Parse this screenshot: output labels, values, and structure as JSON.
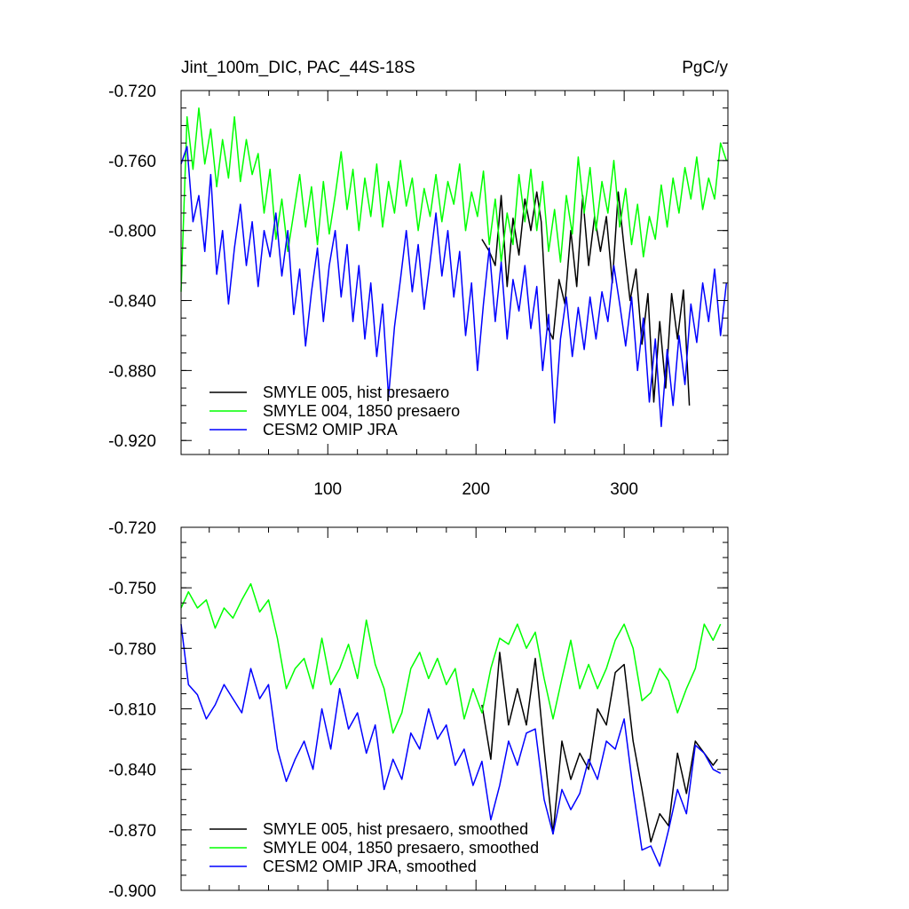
{
  "chart_data": [
    {
      "type": "line",
      "title": "Jint_100m_DIC, PAC_44S-18S",
      "units": "PgC/y",
      "xlabel": "",
      "ylabel": "",
      "xlim": [
        1,
        370
      ],
      "ylim": [
        -0.928,
        -0.72
      ],
      "yticks": [
        "-0.720",
        "-0.760",
        "-0.800",
        "-0.840",
        "-0.880",
        "-0.920"
      ],
      "ytick_values": [
        -0.72,
        -0.76,
        -0.8,
        -0.84,
        -0.88,
        -0.92
      ],
      "xticks": [
        "100",
        "200",
        "300"
      ],
      "xtick_values": [
        100,
        200,
        300
      ],
      "legend": [
        "SMYLE 005, hist presaero",
        "SMYLE 004, 1850 presaero",
        "CESM2 OMIP JRA"
      ],
      "series": [
        {
          "name": "SMYLE 005, hist presaero",
          "color": "#000000",
          "x": [
            204,
            209,
            213,
            217,
            221,
            225,
            229,
            233,
            237,
            241,
            244,
            248,
            252,
            256,
            260,
            264,
            268,
            272,
            276,
            280,
            284,
            288,
            292,
            296,
            300,
            304,
            308,
            312,
            316,
            320,
            324,
            328,
            332,
            336,
            340,
            344
          ],
          "values": [
            -0.805,
            -0.812,
            -0.82,
            -0.78,
            -0.832,
            -0.793,
            -0.814,
            -0.782,
            -0.8,
            -0.778,
            -0.795,
            -0.855,
            -0.862,
            -0.828,
            -0.842,
            -0.8,
            -0.832,
            -0.78,
            -0.82,
            -0.792,
            -0.812,
            -0.792,
            -0.83,
            -0.778,
            -0.81,
            -0.84,
            -0.822,
            -0.865,
            -0.836,
            -0.898,
            -0.852,
            -0.89,
            -0.836,
            -0.862,
            -0.834,
            -0.9
          ]
        },
        {
          "name": "SMYLE 004, 1850 presaero",
          "color": "#00ff00",
          "x": [
            1,
            5,
            9,
            13,
            17,
            21,
            25,
            29,
            33,
            37,
            41,
            45,
            49,
            53,
            57,
            61,
            65,
            69,
            73,
            77,
            81,
            85,
            89,
            93,
            97,
            101,
            105,
            109,
            113,
            117,
            121,
            125,
            129,
            133,
            137,
            141,
            145,
            149,
            153,
            157,
            161,
            165,
            169,
            173,
            177,
            181,
            185,
            189,
            193,
            197,
            201,
            205,
            209,
            213,
            217,
            221,
            225,
            229,
            233,
            237,
            241,
            245,
            249,
            253,
            257,
            261,
            265,
            269,
            273,
            277,
            281,
            285,
            289,
            293,
            297,
            301,
            305,
            309,
            313,
            317,
            321,
            325,
            329,
            333,
            337,
            341,
            345,
            349,
            353,
            357,
            361,
            365,
            369
          ],
          "values": [
            -0.835,
            -0.735,
            -0.765,
            -0.73,
            -0.762,
            -0.742,
            -0.775,
            -0.748,
            -0.77,
            -0.735,
            -0.772,
            -0.748,
            -0.768,
            -0.756,
            -0.79,
            -0.765,
            -0.805,
            -0.782,
            -0.812,
            -0.79,
            -0.768,
            -0.798,
            -0.775,
            -0.808,
            -0.772,
            -0.802,
            -0.78,
            -0.755,
            -0.788,
            -0.765,
            -0.8,
            -0.77,
            -0.792,
            -0.762,
            -0.798,
            -0.772,
            -0.79,
            -0.76,
            -0.786,
            -0.77,
            -0.8,
            -0.776,
            -0.792,
            -0.768,
            -0.795,
            -0.772,
            -0.785,
            -0.762,
            -0.8,
            -0.778,
            -0.792,
            -0.766,
            -0.808,
            -0.782,
            -0.818,
            -0.79,
            -0.808,
            -0.768,
            -0.795,
            -0.765,
            -0.8,
            -0.772,
            -0.812,
            -0.788,
            -0.818,
            -0.78,
            -0.802,
            -0.758,
            -0.79,
            -0.764,
            -0.8,
            -0.772,
            -0.79,
            -0.76,
            -0.798,
            -0.776,
            -0.808,
            -0.785,
            -0.815,
            -0.792,
            -0.805,
            -0.774,
            -0.798,
            -0.77,
            -0.79,
            -0.764,
            -0.782,
            -0.758,
            -0.788,
            -0.77,
            -0.782,
            -0.75,
            -0.76
          ]
        },
        {
          "name": "CESM2 OMIP JRA",
          "color": "#0000ff",
          "x": [
            1,
            5,
            9,
            13,
            17,
            21,
            25,
            29,
            33,
            37,
            41,
            45,
            49,
            53,
            57,
            61,
            65,
            69,
            73,
            77,
            81,
            85,
            89,
            93,
            97,
            101,
            105,
            109,
            113,
            117,
            121,
            125,
            129,
            133,
            137,
            141,
            145,
            149,
            153,
            157,
            161,
            165,
            169,
            173,
            177,
            181,
            185,
            189,
            193,
            197,
            201,
            205,
            209,
            213,
            217,
            221,
            225,
            229,
            233,
            237,
            241,
            245,
            249,
            253,
            257,
            261,
            265,
            269,
            273,
            277,
            281,
            285,
            289,
            293,
            297,
            301,
            305,
            309,
            313,
            317,
            321,
            325,
            329,
            333,
            337,
            341,
            345,
            349,
            353,
            357,
            361,
            365,
            369
          ],
          "values": [
            -0.762,
            -0.752,
            -0.795,
            -0.78,
            -0.812,
            -0.768,
            -0.825,
            -0.8,
            -0.842,
            -0.81,
            -0.785,
            -0.82,
            -0.795,
            -0.832,
            -0.8,
            -0.815,
            -0.79,
            -0.826,
            -0.8,
            -0.848,
            -0.822,
            -0.866,
            -0.835,
            -0.81,
            -0.852,
            -0.82,
            -0.8,
            -0.838,
            -0.808,
            -0.852,
            -0.82,
            -0.862,
            -0.83,
            -0.872,
            -0.842,
            -0.895,
            -0.855,
            -0.828,
            -0.8,
            -0.835,
            -0.808,
            -0.845,
            -0.818,
            -0.79,
            -0.826,
            -0.8,
            -0.838,
            -0.812,
            -0.86,
            -0.83,
            -0.88,
            -0.842,
            -0.81,
            -0.852,
            -0.818,
            -0.862,
            -0.828,
            -0.846,
            -0.82,
            -0.856,
            -0.832,
            -0.88,
            -0.848,
            -0.91,
            -0.862,
            -0.838,
            -0.872,
            -0.844,
            -0.868,
            -0.838,
            -0.862,
            -0.835,
            -0.852,
            -0.82,
            -0.842,
            -0.866,
            -0.838,
            -0.88,
            -0.85,
            -0.898,
            -0.862,
            -0.912,
            -0.868,
            -0.9,
            -0.86,
            -0.888,
            -0.842,
            -0.864,
            -0.83,
            -0.852,
            -0.822,
            -0.86,
            -0.83
          ]
        }
      ]
    },
    {
      "type": "line",
      "title": "",
      "xlabel": "",
      "ylabel": "",
      "xlim": [
        1,
        370
      ],
      "ylim": [
        -0.9,
        -0.72
      ],
      "yticks": [
        "-0.720",
        "-0.750",
        "-0.780",
        "-0.810",
        "-0.840",
        "-0.870",
        "-0.900"
      ],
      "ytick_values": [
        -0.72,
        -0.75,
        -0.78,
        -0.81,
        -0.84,
        -0.87,
        -0.9
      ],
      "xtick_values": [
        100,
        200,
        300
      ],
      "legend": [
        "SMYLE 005, hist presaero, smoothed",
        "SMYLE 004, 1850 presaero, smoothed",
        "CESM2 OMIP JRA, smoothed"
      ],
      "series": [
        {
          "name": "SMYLE 005, hist presaero, smoothed",
          "color": "#000000",
          "x": [
            204,
            210,
            216,
            222,
            228,
            234,
            240,
            246,
            252,
            258,
            264,
            270,
            276,
            282,
            288,
            294,
            300,
            306,
            312,
            318,
            324,
            330,
            336,
            342,
            348,
            354,
            360,
            363
          ],
          "values": [
            -0.808,
            -0.835,
            -0.782,
            -0.818,
            -0.8,
            -0.818,
            -0.785,
            -0.83,
            -0.872,
            -0.826,
            -0.845,
            -0.832,
            -0.84,
            -0.81,
            -0.818,
            -0.792,
            -0.788,
            -0.826,
            -0.85,
            -0.876,
            -0.862,
            -0.868,
            -0.832,
            -0.852,
            -0.826,
            -0.832,
            -0.838,
            -0.835
          ]
        },
        {
          "name": "SMYLE 004, 1850 presaero, smoothed",
          "color": "#00ff00",
          "x": [
            1,
            6,
            12,
            18,
            24,
            30,
            36,
            42,
            48,
            54,
            60,
            66,
            72,
            78,
            84,
            90,
            96,
            102,
            108,
            114,
            120,
            126,
            132,
            138,
            144,
            150,
            156,
            162,
            168,
            174,
            180,
            186,
            192,
            198,
            204,
            210,
            216,
            222,
            228,
            234,
            240,
            246,
            252,
            258,
            264,
            270,
            276,
            282,
            288,
            294,
            300,
            306,
            312,
            318,
            324,
            330,
            336,
            342,
            348,
            354,
            360,
            365
          ],
          "values": [
            -0.76,
            -0.752,
            -0.76,
            -0.756,
            -0.77,
            -0.76,
            -0.765,
            -0.756,
            -0.748,
            -0.762,
            -0.756,
            -0.775,
            -0.8,
            -0.79,
            -0.785,
            -0.8,
            -0.775,
            -0.798,
            -0.79,
            -0.778,
            -0.795,
            -0.766,
            -0.788,
            -0.8,
            -0.822,
            -0.812,
            -0.79,
            -0.782,
            -0.795,
            -0.785,
            -0.798,
            -0.79,
            -0.815,
            -0.8,
            -0.812,
            -0.79,
            -0.775,
            -0.778,
            -0.768,
            -0.78,
            -0.772,
            -0.795,
            -0.815,
            -0.795,
            -0.776,
            -0.8,
            -0.788,
            -0.8,
            -0.79,
            -0.776,
            -0.768,
            -0.78,
            -0.806,
            -0.802,
            -0.79,
            -0.796,
            -0.812,
            -0.8,
            -0.79,
            -0.768,
            -0.776,
            -0.768
          ]
        },
        {
          "name": "CESM2 OMIP JRA, smoothed",
          "color": "#0000ff",
          "x": [
            1,
            6,
            12,
            18,
            24,
            30,
            36,
            42,
            48,
            54,
            60,
            66,
            72,
            78,
            84,
            90,
            96,
            102,
            108,
            114,
            120,
            126,
            132,
            138,
            144,
            150,
            156,
            162,
            168,
            174,
            180,
            186,
            192,
            198,
            204,
            210,
            216,
            222,
            228,
            234,
            240,
            246,
            252,
            258,
            264,
            270,
            276,
            282,
            288,
            294,
            300,
            306,
            312,
            318,
            324,
            330,
            336,
            342,
            348,
            354,
            360,
            365
          ],
          "values": [
            -0.768,
            -0.798,
            -0.803,
            -0.815,
            -0.808,
            -0.798,
            -0.805,
            -0.812,
            -0.79,
            -0.805,
            -0.798,
            -0.83,
            -0.846,
            -0.835,
            -0.826,
            -0.84,
            -0.81,
            -0.83,
            -0.8,
            -0.82,
            -0.812,
            -0.832,
            -0.818,
            -0.85,
            -0.835,
            -0.845,
            -0.822,
            -0.83,
            -0.81,
            -0.825,
            -0.818,
            -0.838,
            -0.83,
            -0.848,
            -0.836,
            -0.865,
            -0.848,
            -0.826,
            -0.838,
            -0.822,
            -0.82,
            -0.855,
            -0.872,
            -0.85,
            -0.86,
            -0.852,
            -0.835,
            -0.845,
            -0.826,
            -0.83,
            -0.815,
            -0.85,
            -0.88,
            -0.878,
            -0.888,
            -0.87,
            -0.85,
            -0.862,
            -0.828,
            -0.832,
            -0.84,
            -0.842
          ]
        }
      ]
    }
  ]
}
